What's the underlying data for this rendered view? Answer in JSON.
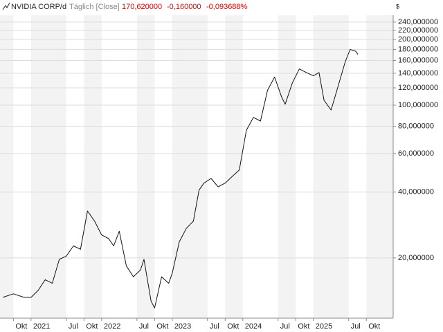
{
  "chart_data": {
    "type": "line",
    "title": "NVIDIA CORP/d",
    "subtitle": "Täglich [Close]",
    "annotations": [
      "170,620000",
      "-0,160000",
      "-0,093688%"
    ],
    "y_axis_label": "$",
    "log_scale": true,
    "grid": true,
    "legend": false,
    "x": [
      2020.6,
      2020.75,
      2020.9,
      2021.0,
      2021.1,
      2021.2,
      2021.3,
      2021.4,
      2021.5,
      2021.6,
      2021.7,
      2021.8,
      2021.9,
      2022.0,
      2022.1,
      2022.17,
      2022.25,
      2022.35,
      2022.45,
      2022.55,
      2022.6,
      2022.7,
      2022.75,
      2022.85,
      2022.95,
      2023.0,
      2023.1,
      2023.2,
      2023.3,
      2023.38,
      2023.45,
      2023.55,
      2023.65,
      2023.75,
      2023.85,
      2023.95,
      2024.05,
      2024.15,
      2024.25,
      2024.35,
      2024.45,
      2024.55,
      2024.6,
      2024.7,
      2024.8,
      2024.9,
      2025.0,
      2025.08,
      2025.15,
      2025.25,
      2025.35,
      2025.45,
      2025.52,
      2025.6,
      2025.63
    ],
    "series": [
      {
        "name": "NVIDIA CORP",
        "color": "#111111",
        "values": [
          13.2,
          13.7,
          13.2,
          13.2,
          14.2,
          15.9,
          15.3,
          19.7,
          20.4,
          22.7,
          21.9,
          32.8,
          29.5,
          25.5,
          24.5,
          22.7,
          26.5,
          18.4,
          16.4,
          17.6,
          19.7,
          12.7,
          11.8,
          16.4,
          15.3,
          17.0,
          23.7,
          27.3,
          29.5,
          40.9,
          44.0,
          46.2,
          42.3,
          44.0,
          47.2,
          50.5,
          76.7,
          87.9,
          84.6,
          117.0,
          134.5,
          108.9,
          101.0,
          126.0,
          146.4,
          141.0,
          136.3,
          141.0,
          105.3,
          95.0,
          122.3,
          157.7,
          179.8,
          176.5,
          170.62
        ]
      }
    ],
    "xlim": [
      2020.56,
      2026.13
    ],
    "xticks": [
      {
        "value": 2020.75,
        "label": "Okt"
      },
      {
        "value": 2021,
        "label": "2021"
      },
      {
        "value": 2021.5,
        "label": "Jul"
      },
      {
        "value": 2021.75,
        "label": "Okt"
      },
      {
        "value": 2022,
        "label": "2022"
      },
      {
        "value": 2022.5,
        "label": "Jul"
      },
      {
        "value": 2022.75,
        "label": "Okt"
      },
      {
        "value": 2023,
        "label": "2023"
      },
      {
        "value": 2023.5,
        "label": "Jul"
      },
      {
        "value": 2023.75,
        "label": "Okt"
      },
      {
        "value": 2024,
        "label": "2024"
      },
      {
        "value": 2024.5,
        "label": "Jul"
      },
      {
        "value": 2024.75,
        "label": "Okt"
      },
      {
        "value": 2025,
        "label": "2025"
      },
      {
        "value": 2025.5,
        "label": "Jul"
      },
      {
        "value": 2025.75,
        "label": "Okt"
      }
    ],
    "ylim": [
      10.6,
      258
    ],
    "yticks": [
      {
        "value": 20,
        "label": "20,000000"
      },
      {
        "value": 40,
        "label": "40,000000"
      },
      {
        "value": 60,
        "label": "60,000000"
      },
      {
        "value": 80,
        "label": "80,000000"
      },
      {
        "value": 100,
        "label": "100,000000"
      },
      {
        "value": 120,
        "label": "120,000000"
      },
      {
        "value": 140,
        "label": "140,000000"
      },
      {
        "value": 160,
        "label": "160,000000"
      },
      {
        "value": 180,
        "label": "180,000000"
      },
      {
        "value": 200,
        "label": "200,000000"
      },
      {
        "value": 220,
        "label": "220,000000"
      },
      {
        "value": 240,
        "label": "240,000000"
      }
    ]
  }
}
